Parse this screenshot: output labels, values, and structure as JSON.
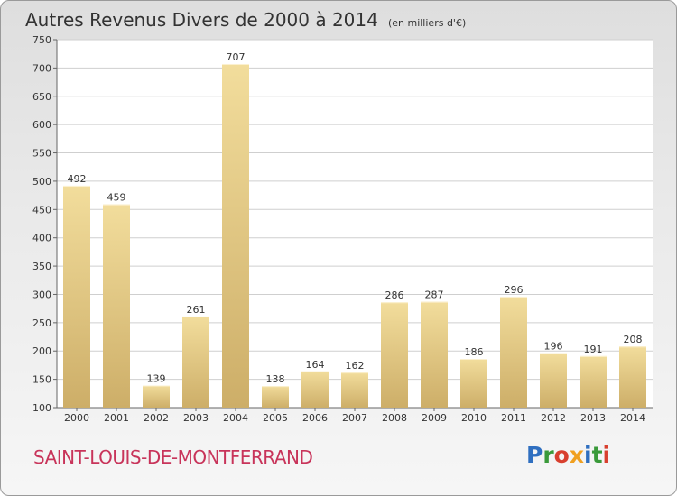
{
  "header": {
    "title": "Autres Revenus Divers de 2000 à 2014",
    "unit": "(en milliers d'€)"
  },
  "footer": {
    "commune": "SAINT-LOUIS-DE-MONTFERRAND",
    "logo": "Proxiti"
  },
  "colors": {
    "bar_light": "#f2dd9c",
    "bar_dark": "#cdae68",
    "commune_text": "#c8345a"
  },
  "chart_data": {
    "type": "bar",
    "title": "Autres Revenus Divers de 2000 à 2014",
    "subtitle": "(en milliers d'€)",
    "xlabel": "",
    "ylabel": "",
    "categories": [
      "2000",
      "2001",
      "2002",
      "2003",
      "2004",
      "2005",
      "2006",
      "2007",
      "2008",
      "2009",
      "2010",
      "2011",
      "2012",
      "2013",
      "2014"
    ],
    "values": [
      492,
      459,
      139,
      261,
      707,
      138,
      164,
      162,
      286,
      287,
      186,
      296,
      196,
      191,
      208
    ],
    "ylim": [
      100,
      750
    ],
    "yticks": [
      100,
      150,
      200,
      250,
      300,
      350,
      400,
      450,
      500,
      550,
      600,
      650,
      700,
      750
    ],
    "grid": true,
    "legend": "none"
  }
}
